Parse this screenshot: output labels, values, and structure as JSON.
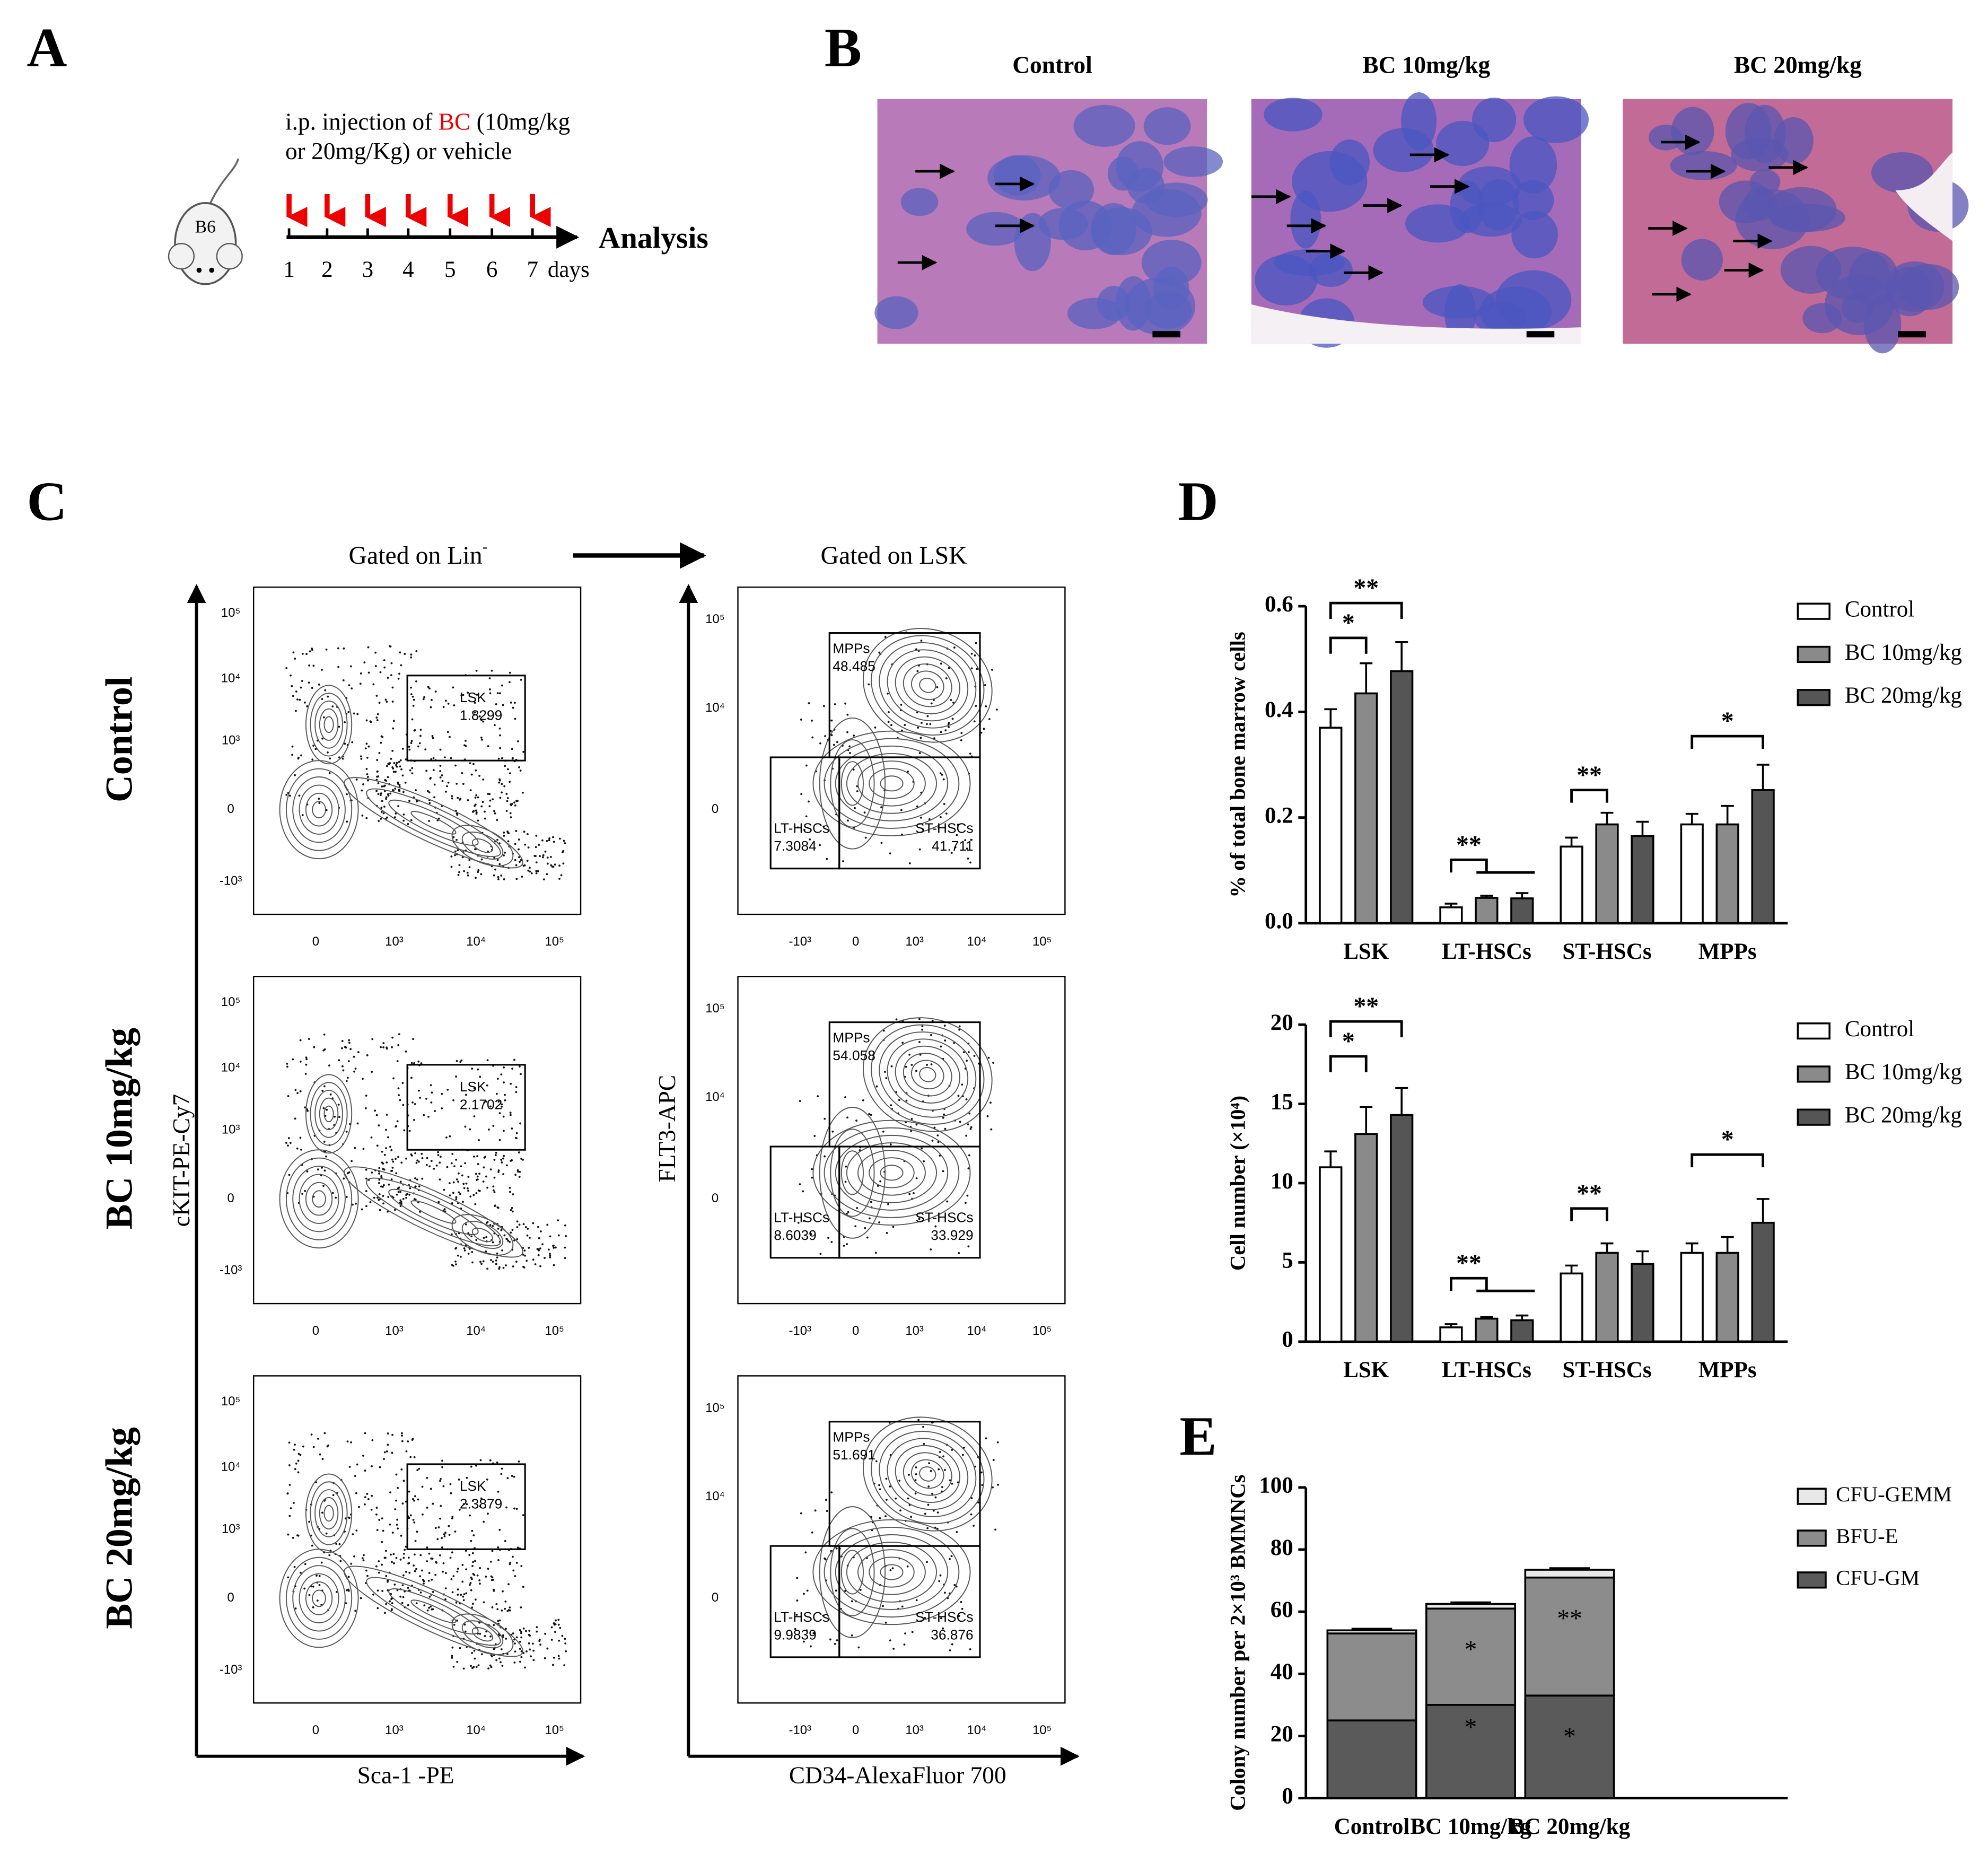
{
  "panels": {
    "A": {
      "letter": "A",
      "text_before": "i.p. injection of ",
      "highlight": "BC",
      "text_after": " (10mg/kg",
      "line2": "or 20mg/Kg) or vehicle",
      "mouse_label": "B6",
      "days": [
        "1",
        "2",
        "3",
        "4",
        "5",
        "6",
        "7"
      ],
      "days_unit": "days",
      "end_label": "Analysis"
    },
    "B": {
      "letter": "B",
      "titles": [
        "Control",
        "BC 10mg/kg",
        "BC 20mg/kg"
      ]
    },
    "C": {
      "letter": "C",
      "header_left": "Gated on Lin",
      "header_left_sup": "-",
      "header_right": "Gated on LSK",
      "left_ylabel": "cKIT-PE-Cy7",
      "left_xlabel": "Sca-1 -PE",
      "right_ylabel": "FLT3-APC",
      "right_xlabel": "CD34-AlexaFluor 700",
      "left_xticks": [
        "0",
        "10³",
        "10⁴",
        "10⁵"
      ],
      "left_yticks": [
        "10⁵",
        "10⁴",
        "10³",
        "0",
        "-10³"
      ],
      "right_xticks": [
        "-10³",
        "0",
        "10³",
        "10⁴",
        "10⁵"
      ],
      "right_yticks": [
        "10⁵",
        "10⁴",
        "0"
      ],
      "rows": [
        {
          "label": "Control",
          "lsk": [
            "LSK",
            "1.8299"
          ],
          "mpps": [
            "MPPs",
            "48.485"
          ],
          "lt": [
            "LT-HSCs",
            "7.3084"
          ],
          "st": [
            "ST-HSCs",
            "41.711"
          ]
        },
        {
          "label": "BC 10mg/kg",
          "lsk": [
            "LSK",
            "2.1702"
          ],
          "mpps": [
            "MPPs",
            "54.058"
          ],
          "lt": [
            "LT-HSCs",
            "8.6039"
          ],
          "st": [
            "ST-HSCs",
            "33.929"
          ]
        },
        {
          "label": "BC 20mg/kg",
          "lsk": [
            "LSK",
            "2.3879"
          ],
          "mpps": [
            "MPPs",
            "51.691"
          ],
          "lt": [
            "LT-HSCs",
            "9.9839"
          ],
          "st": [
            "ST-HSCs",
            "36.876"
          ]
        }
      ]
    },
    "D": {
      "letter": "D"
    },
    "E": {
      "letter": "E"
    }
  },
  "chart_data": [
    {
      "type": "bar",
      "ylabel": "% of total bone marrow cells",
      "categories": [
        "LSK",
        "LT-HSCs",
        "ST-HSCs",
        "MPPs"
      ],
      "ylim": [
        0,
        0.6
      ],
      "yticks": [
        {
          "value": 0,
          "label": "0.0"
        },
        0.2,
        0.4,
        0.6
      ],
      "series": [
        {
          "name": "Control",
          "color": "#ffffff",
          "values": [
            0.37,
            0.03,
            0.145,
            0.187
          ],
          "errors": [
            0.035,
            0.007,
            0.017,
            0.02
          ]
        },
        {
          "name": "BC 10mg/kg",
          "color": "#8a8a8a",
          "values": [
            0.435,
            0.048,
            0.187,
            0.187
          ],
          "errors": [
            0.057,
            0.004,
            0.022,
            0.035
          ]
        },
        {
          "name": "BC 20mg/kg",
          "color": "#555555",
          "values": [
            0.477,
            0.047,
            0.165,
            0.252
          ],
          "errors": [
            0.055,
            0.01,
            0.027,
            0.048
          ]
        }
      ],
      "annotations": [
        "*",
        "**",
        "**",
        "**",
        "*"
      ]
    },
    {
      "type": "bar",
      "ylabel": "Cell number (×10⁴)",
      "categories": [
        "LSK",
        "LT-HSCs",
        "ST-HSCs",
        "MPPs"
      ],
      "ylim": [
        0,
        20
      ],
      "yticks": [
        0,
        5,
        10,
        15,
        20
      ],
      "series": [
        {
          "name": "Control",
          "color": "#ffffff",
          "values": [
            11,
            0.9,
            4.3,
            5.6
          ],
          "errors": [
            1,
            0.2,
            0.5,
            0.6
          ]
        },
        {
          "name": "BC 10mg/kg",
          "color": "#8a8a8a",
          "values": [
            13.1,
            1.45,
            5.6,
            5.6
          ],
          "errors": [
            1.7,
            0.1,
            0.6,
            1
          ]
        },
        {
          "name": "BC 20mg/kg",
          "color": "#555555",
          "values": [
            14.3,
            1.35,
            4.9,
            7.5
          ],
          "errors": [
            1.7,
            0.3,
            0.8,
            1.5
          ]
        }
      ],
      "annotations": [
        "*",
        "**",
        "**",
        "**",
        "*"
      ]
    },
    {
      "type": "stacked_bar",
      "ylabel": "Colony number per 2×10³ BMMNCs",
      "categories": [
        "Control",
        "BC 10mg/kg",
        "BC 20mg/kg"
      ],
      "ylim": [
        0,
        100
      ],
      "yticks": [
        0,
        20,
        40,
        60,
        80,
        100
      ],
      "series": [
        {
          "name": "CFU-GM",
          "color": "#5a5a5a",
          "values": [
            25,
            30,
            33
          ],
          "errors": [
            2,
            1.3,
            2
          ]
        },
        {
          "name": "BFU-E",
          "color": "#8c8c8c",
          "values": [
            28,
            31,
            38
          ],
          "errors": [
            0.6,
            1,
            0.8
          ]
        },
        {
          "name": "CFU-GEMM",
          "color": "#e8e8e8",
          "values": [
            1,
            1.5,
            2.5
          ],
          "errors": [
            0.5,
            0.5,
            0.5
          ]
        }
      ],
      "annotations": [
        "*",
        "**",
        "*",
        "*"
      ]
    }
  ]
}
